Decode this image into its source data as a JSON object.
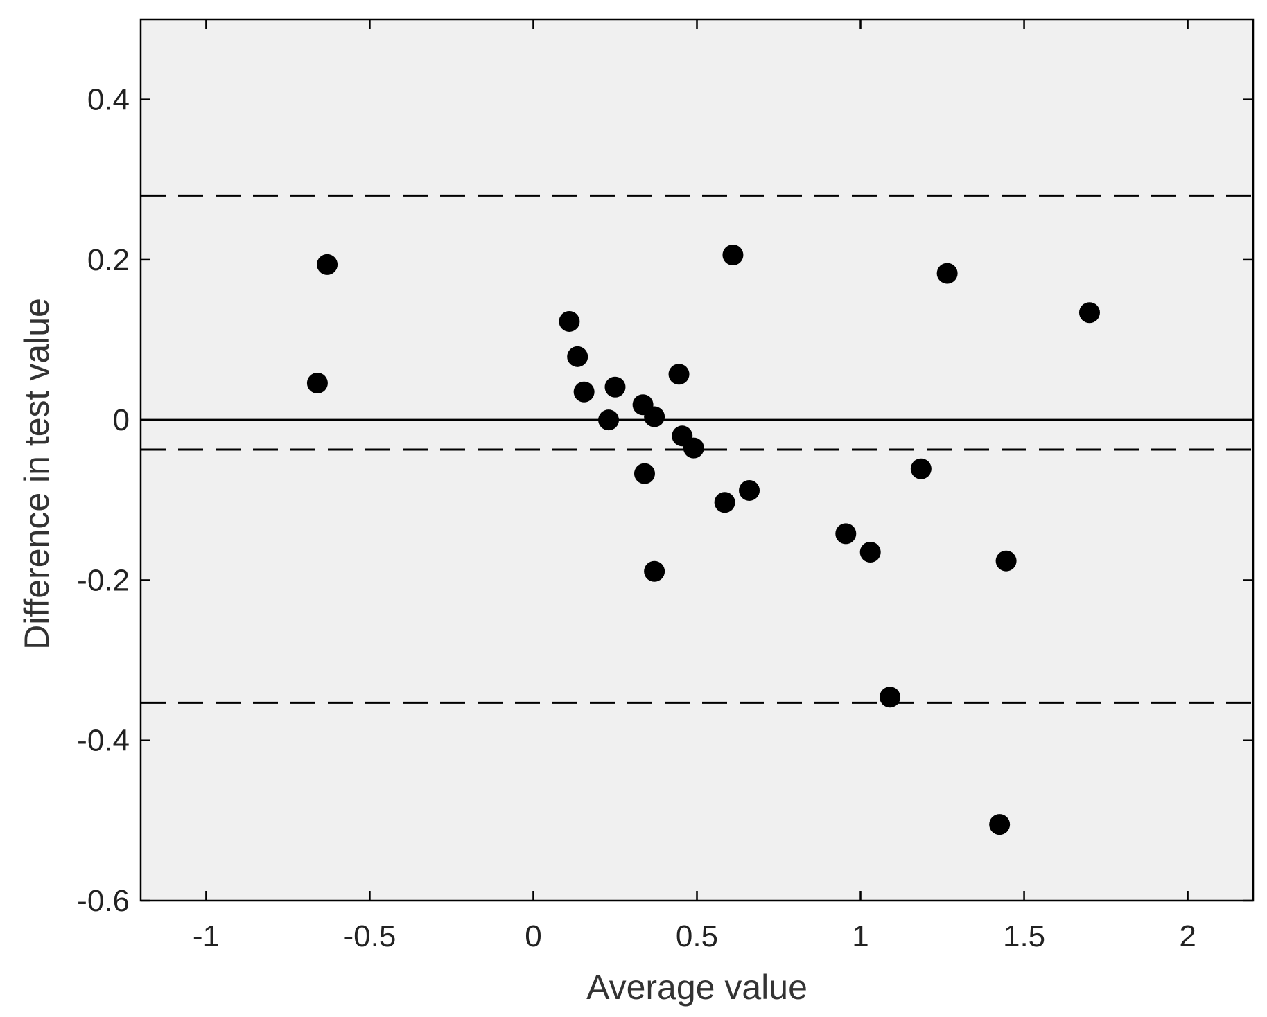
{
  "chart_data": {
    "type": "scatter",
    "title": "",
    "xlabel": "Average value",
    "ylabel": "Difference in test value",
    "xlim": [
      -1.2,
      2.2
    ],
    "ylim": [
      -0.6,
      0.5
    ],
    "xticks": [
      "-1",
      "-0.5",
      "0",
      "0.5",
      "1",
      "1.5",
      "2"
    ],
    "yticks": [
      "0.4",
      "0.2",
      "0",
      "-0.2",
      "-0.4",
      "-0.6"
    ],
    "grid": false,
    "colors": {
      "plot_background": "#f0f0f0",
      "points": "#000000",
      "lines": "#000000"
    },
    "reference_lines": [
      {
        "y": 0.28,
        "style": "dashed"
      },
      {
        "y": 0.0,
        "style": "solid"
      },
      {
        "y": -0.037,
        "style": "dashed"
      },
      {
        "y": -0.353,
        "style": "dashed"
      }
    ],
    "points": [
      {
        "x": -0.66,
        "y": 0.046
      },
      {
        "x": -0.63,
        "y": 0.194
      },
      {
        "x": 0.11,
        "y": 0.123
      },
      {
        "x": 0.135,
        "y": 0.079
      },
      {
        "x": 0.155,
        "y": 0.035
      },
      {
        "x": 0.23,
        "y": 0.0
      },
      {
        "x": 0.25,
        "y": 0.041
      },
      {
        "x": 0.335,
        "y": 0.019
      },
      {
        "x": 0.34,
        "y": -0.067
      },
      {
        "x": 0.37,
        "y": 0.004
      },
      {
        "x": 0.37,
        "y": -0.189
      },
      {
        "x": 0.445,
        "y": 0.057
      },
      {
        "x": 0.455,
        "y": -0.02
      },
      {
        "x": 0.49,
        "y": -0.035
      },
      {
        "x": 0.585,
        "y": -0.103
      },
      {
        "x": 0.61,
        "y": 0.206
      },
      {
        "x": 0.66,
        "y": -0.088
      },
      {
        "x": 0.955,
        "y": -0.142
      },
      {
        "x": 1.03,
        "y": -0.165
      },
      {
        "x": 1.09,
        "y": -0.346
      },
      {
        "x": 1.185,
        "y": -0.061
      },
      {
        "x": 1.265,
        "y": 0.183
      },
      {
        "x": 1.425,
        "y": -0.505
      },
      {
        "x": 1.445,
        "y": -0.176
      },
      {
        "x": 1.7,
        "y": 0.134
      }
    ]
  }
}
